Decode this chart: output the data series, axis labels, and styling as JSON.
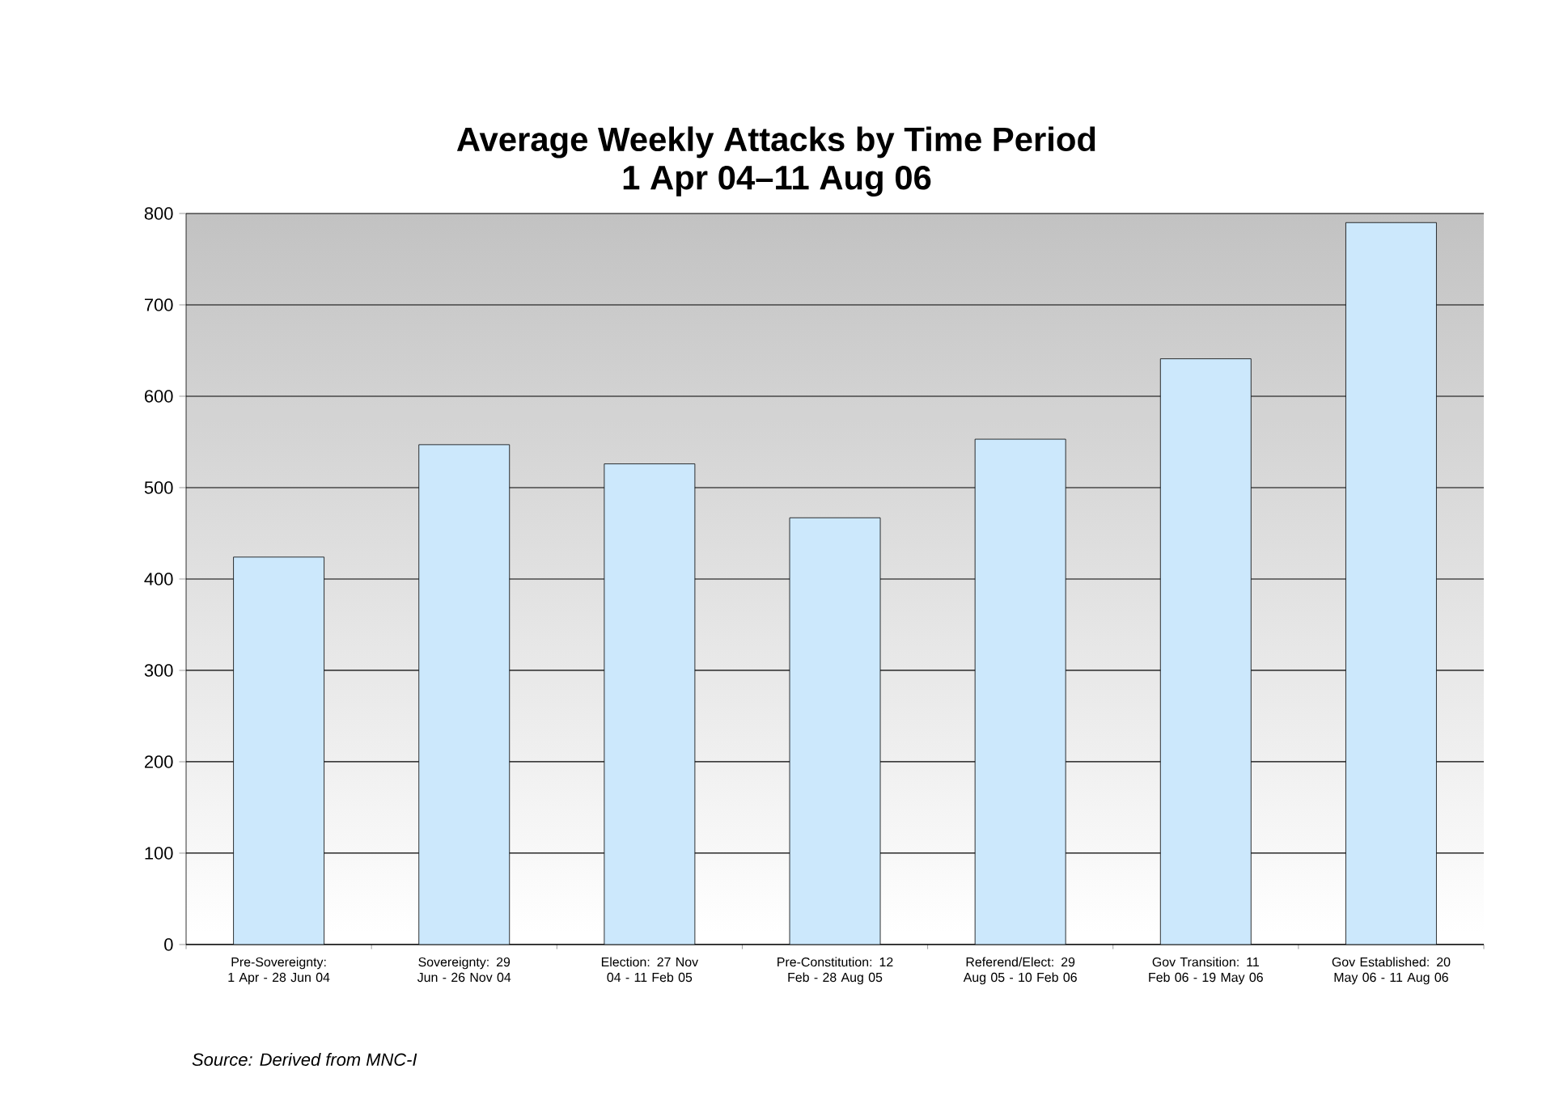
{
  "chart_data": {
    "type": "bar",
    "title": "Average Weekly Attacks by Time Period",
    "subtitle": "1 Apr 04–11 Aug 06",
    "categories": [
      "Pre-Sovereignty: 1 Apr - 28 Jun 04",
      "Sovereignty: 29 Jun - 26 Nov 04",
      "Election: 27 Nov 04 - 11 Feb 05",
      "Pre-Constitution: 12 Feb - 28 Aug 05",
      "Referend/Elect: 29 Aug 05 - 10 Feb 06",
      "Gov Transition: 11 Feb 06 - 19 May 06",
      "Gov Established: 20 May 06 - 11 Aug 06"
    ],
    "values": [
      424,
      547,
      526,
      467,
      553,
      641,
      790
    ],
    "color": "#cce8fc",
    "ylim": [
      0,
      800
    ],
    "yticks": [
      0,
      100,
      200,
      300,
      400,
      500,
      600,
      700,
      800
    ],
    "grid": "y",
    "annotations": [
      "Source: Derived from MNC-I"
    ]
  }
}
